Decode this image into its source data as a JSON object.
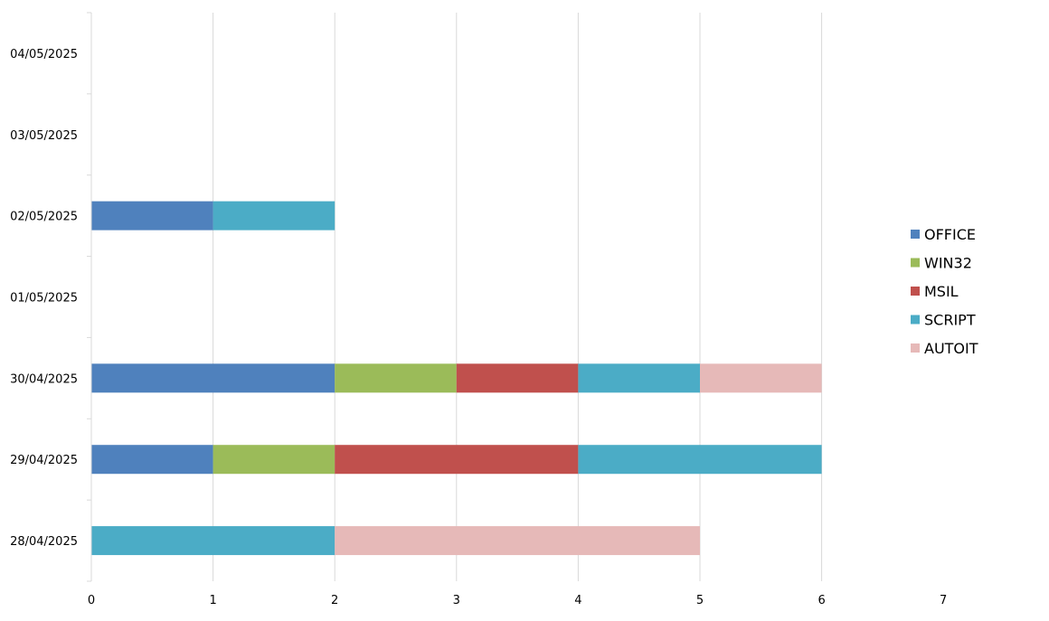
{
  "chart_data": {
    "type": "bar",
    "orientation": "horizontal",
    "stacked": true,
    "categories": [
      "04/05/2025",
      "03/05/2025",
      "02/05/2025",
      "01/05/2025",
      "30/04/2025",
      "29/04/2025",
      "28/04/2025"
    ],
    "series": [
      {
        "name": "OFFICE",
        "color": "#4F81BD",
        "values": [
          0,
          0,
          1,
          0,
          2,
          1,
          0
        ]
      },
      {
        "name": "WIN32",
        "color": "#9BBB59",
        "values": [
          0,
          0,
          0,
          0,
          1,
          1,
          0
        ]
      },
      {
        "name": "MSIL",
        "color": "#C0504D",
        "values": [
          0,
          0,
          0,
          0,
          1,
          2,
          0
        ]
      },
      {
        "name": "SCRIPT",
        "color": "#4BACC6",
        "values": [
          0,
          0,
          1,
          0,
          1,
          2,
          2
        ]
      },
      {
        "name": "AUTOIT",
        "color": "#E6B9B8",
        "values": [
          0,
          0,
          0,
          0,
          1,
          0,
          3
        ]
      }
    ],
    "x_ticks": [
      "0",
      "1",
      "2",
      "3",
      "4",
      "5",
      "6",
      "7"
    ],
    "xlim": [
      0,
      7
    ],
    "grid": "vertical",
    "legend_position": "right",
    "title": "",
    "xlabel": "",
    "ylabel": ""
  }
}
